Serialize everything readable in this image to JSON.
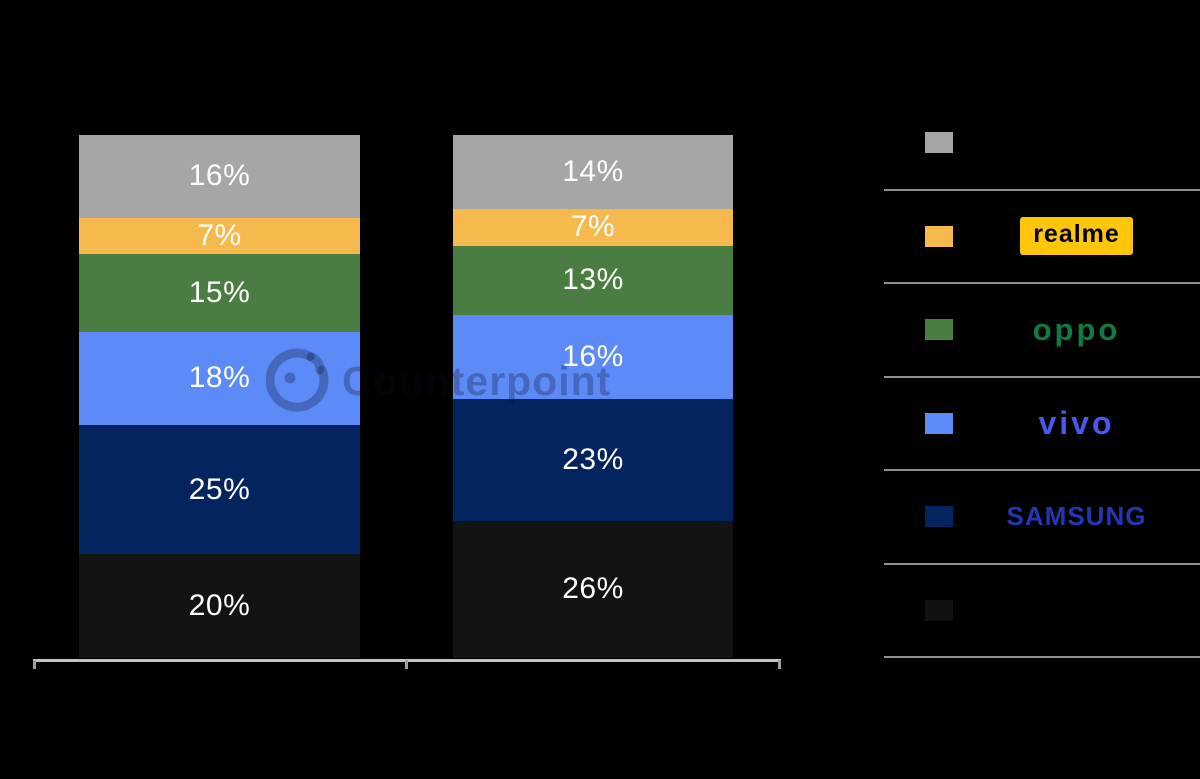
{
  "watermark": {
    "text": "Counterpoint"
  },
  "chart_data": {
    "type": "bar",
    "stacked": true,
    "orientation": "vertical",
    "categories": [
      "",
      ""
    ],
    "category_labels_visible": false,
    "value_suffix": "%",
    "series": [
      {
        "name": "others-gray",
        "legend_label": "",
        "color": "#A6A6A6",
        "values": [
          16,
          14
        ]
      },
      {
        "name": "realme",
        "legend_label": "realme",
        "color": "#F5B94E",
        "values": [
          7,
          7
        ]
      },
      {
        "name": "oppo",
        "legend_label": "oppo",
        "color": "#4A7D42",
        "values": [
          15,
          13
        ]
      },
      {
        "name": "vivo",
        "legend_label": "vivo",
        "color": "#5C8BF7",
        "values": [
          18,
          16
        ]
      },
      {
        "name": "samsung",
        "legend_label": "SAMSUNG",
        "color": "#04245F",
        "values": [
          25,
          23
        ]
      },
      {
        "name": "unlabeled-black",
        "legend_label": "",
        "color": "#131313",
        "values": [
          20,
          26
        ]
      }
    ],
    "data_labels": [
      [
        "16%",
        "7%",
        "15%",
        "18%",
        "25%",
        "20%"
      ],
      [
        "14%",
        "7%",
        "13%",
        "16%",
        "23%",
        "26%"
      ]
    ],
    "ylim": [
      0,
      100
    ],
    "grid": false,
    "legend_position": "right",
    "label_text_color": "#FFFFFF"
  },
  "legend": {
    "rows": [
      {
        "swatch_color": "#A6A6A6",
        "brand": "",
        "logo_style": "none"
      },
      {
        "swatch_color": "#F5B94E",
        "brand": "realme",
        "logo_style": "realme"
      },
      {
        "swatch_color": "#4A7D42",
        "brand": "oppo",
        "logo_style": "oppo"
      },
      {
        "swatch_color": "#5C8BF7",
        "brand": "vivo",
        "logo_style": "vivo"
      },
      {
        "swatch_color": "#04245F",
        "brand": "SAMSUNG",
        "logo_style": "samsung"
      },
      {
        "swatch_color": "#111111",
        "brand": "",
        "logo_style": "none"
      }
    ]
  },
  "colors": {
    "background": "#000000",
    "axis_line": "#C2C2C2",
    "axis_tick": "#9E9E9E",
    "legend_divider": "#8F8F8F",
    "watermark": "rgba(10,15,35,0.28)",
    "realme_logo_bg": "#FFC60C",
    "oppo_logo": "#0E7B43",
    "vivo_logo": "#4859F0",
    "samsung_logo": "#2437B2"
  }
}
